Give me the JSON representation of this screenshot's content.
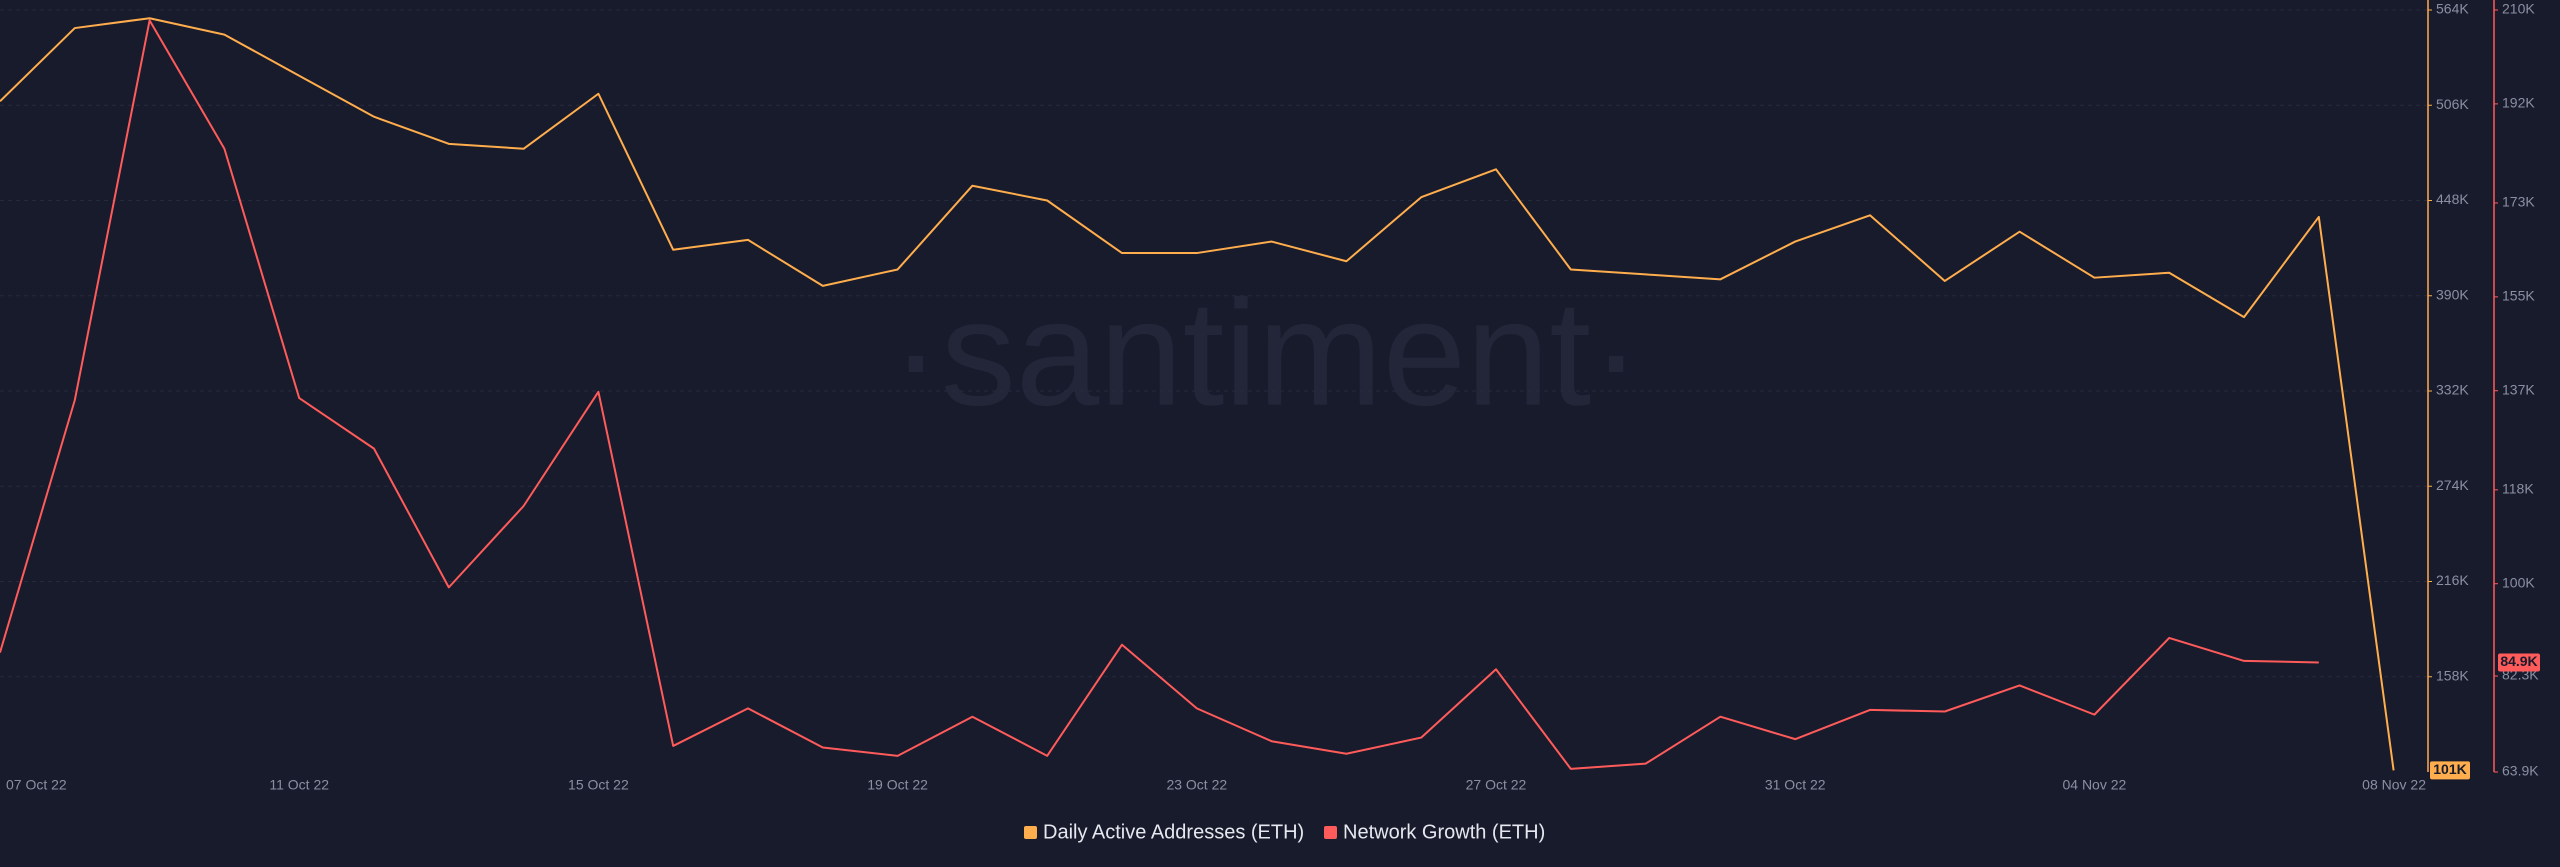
{
  "chart_data": {
    "type": "line",
    "watermark": "·santiment·",
    "categories": [
      "07 Oct 22",
      null,
      null,
      null,
      "11 Oct 22",
      null,
      null,
      null,
      "15 Oct 22",
      null,
      null,
      null,
      "19 Oct 22",
      null,
      null,
      null,
      "23 Oct 22",
      null,
      null,
      null,
      "27 Oct 22",
      null,
      null,
      null,
      "31 Oct 22",
      null,
      null,
      null,
      "04 Nov 22",
      null,
      null,
      null,
      "08 Nov 22"
    ],
    "series": [
      {
        "name": "Daily Active Addresses (ETH)",
        "color": "#ffad4d",
        "axis": "y",
        "values": [
          508400,
          553000,
          559000,
          549000,
          524000,
          499000,
          482500,
          479500,
          513000,
          418000,
          424000,
          396000,
          406000,
          457000,
          448000,
          416000,
          416000,
          423000,
          411000,
          450000,
          467000,
          406000,
          403000,
          400000,
          423000,
          439000,
          399000,
          429000,
          401000,
          404000,
          377000,
          438000,
          101000
        ],
        "value_labels": [
          null,
          null,
          null,
          null,
          null,
          null,
          null,
          null,
          null,
          null,
          null,
          null,
          null,
          null,
          null,
          null,
          null,
          null,
          null,
          null,
          null,
          null,
          null,
          null,
          null,
          null,
          null,
          null,
          null,
          null,
          null,
          null,
          "101K"
        ]
      },
      {
        "name": "Network Growth (ETH)",
        "color": "#ff5b5b",
        "axis": "y2",
        "values": [
          86800,
          135200,
          208000,
          183400,
          135600,
          125900,
          99300,
          114900,
          136800,
          68900,
          76100,
          68600,
          67000,
          74500,
          67000,
          88300,
          76100,
          69800,
          67400,
          70500,
          83600,
          64500,
          65500,
          74500,
          70200,
          75800,
          75500,
          80500,
          74900,
          89600,
          85200,
          84900,
          null
        ],
        "value_labels": [
          null,
          null,
          null,
          null,
          null,
          null,
          null,
          null,
          null,
          null,
          null,
          null,
          null,
          null,
          null,
          null,
          null,
          null,
          null,
          null,
          null,
          null,
          null,
          null,
          null,
          null,
          null,
          null,
          null,
          null,
          null,
          "84.9K",
          null
        ]
      }
    ],
    "ylim": [
      100000,
      564000
    ],
    "yticks": [
      {
        "value": 564000,
        "label": "564K"
      },
      {
        "value": 506000,
        "label": "506K"
      },
      {
        "value": 448000,
        "label": "448K"
      },
      {
        "value": 390000,
        "label": "390K"
      },
      {
        "value": 332000,
        "label": "332K"
      },
      {
        "value": 274000,
        "label": "274K"
      },
      {
        "value": 216000,
        "label": "216K"
      },
      {
        "value": 158000,
        "label": "158K"
      }
    ],
    "y2lim": [
      63900,
      210000
    ],
    "y2ticks": [
      {
        "value": 210000,
        "label": "210K"
      },
      {
        "value": 192000,
        "label": "192K"
      },
      {
        "value": 173000,
        "label": "173K"
      },
      {
        "value": 155000,
        "label": "155K"
      },
      {
        "value": 137000,
        "label": "137K"
      },
      {
        "value": 118000,
        "label": "118K"
      },
      {
        "value": 100000,
        "label": "100K"
      },
      {
        "value": 82300,
        "label": "82.3K"
      },
      {
        "value": 63900,
        "label": "63.9K"
      }
    ],
    "grid": true,
    "legend": "bottom"
  }
}
